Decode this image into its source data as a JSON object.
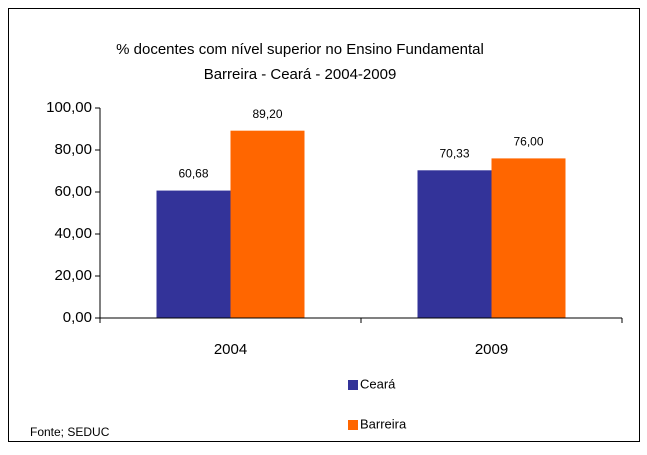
{
  "chart_data": {
    "type": "bar",
    "title": "% docentes com nível superior no Ensino Fundamental",
    "subtitle": "Barreira - Ceará - 2004-2009",
    "categories": [
      "2004",
      "2009"
    ],
    "series": [
      {
        "name": "Ceará",
        "color": "#333399",
        "values": [
          60.68,
          70.33
        ],
        "value_labels": [
          "60,68",
          "70,33"
        ]
      },
      {
        "name": "Barreira",
        "color": "#ff6600",
        "values": [
          89.2,
          76.0
        ],
        "value_labels": [
          "89,20",
          "76,00"
        ]
      }
    ],
    "ylim": [
      0,
      100
    ],
    "yticks": [
      {
        "value": 0,
        "label": "0,00"
      },
      {
        "value": 20,
        "label": "20,00"
      },
      {
        "value": 40,
        "label": "40,00"
      },
      {
        "value": 60,
        "label": "60,00"
      },
      {
        "value": 80,
        "label": "80,00"
      },
      {
        "value": 100,
        "label": "100,00"
      }
    ],
    "grid": false,
    "legend": "bottom",
    "source": "Fonte; SEDUC"
  }
}
